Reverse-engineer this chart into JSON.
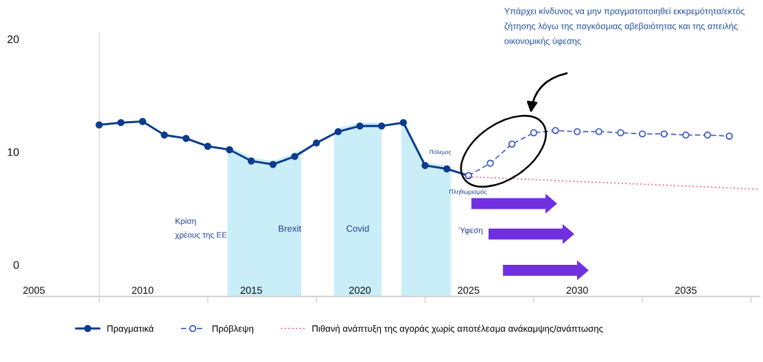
{
  "chart_data": {
    "type": "line",
    "series": [
      {
        "name": "Πραγματικά",
        "color": "#0d3b8e",
        "line_style": "solid",
        "x": [
          2008,
          2009,
          2010,
          2011,
          2012,
          2013,
          2014,
          2015,
          2016,
          2017,
          2018,
          2019,
          2020,
          2021,
          2022,
          2023,
          2024,
          2025
        ],
        "values": [
          12.4,
          12.6,
          12.7,
          11.5,
          11.2,
          10.5,
          10.2,
          9.2,
          8.9,
          9.6,
          10.8,
          11.8,
          12.3,
          12.3,
          12.6,
          8.8,
          8.5,
          7.9
        ]
      },
      {
        "name": "Πρόβλεψη",
        "color": "#3d5fc4",
        "line_style": "dashed",
        "x": [
          2025,
          2026,
          2027,
          2028,
          2029,
          2030,
          2031,
          2032,
          2033,
          2034,
          2035,
          2036,
          2037
        ],
        "values": [
          7.9,
          9.0,
          10.7,
          11.7,
          11.9,
          11.8,
          11.8,
          11.7,
          11.6,
          11.6,
          11.5,
          11.5,
          11.4
        ]
      },
      {
        "name": "Πιθανή ανάπτυξη της αγοράς χωρίς αποτέλεσμα ανάκαμψης/ανάπτωσης",
        "color": "#ec6f98",
        "line_style": "dotted",
        "marker": "none",
        "x": [
          2025,
          2038.4
        ],
        "values": [
          7.8,
          6.7
        ]
      }
    ],
    "marker": "circle",
    "xlim": [
      2004.7,
      2038.4
    ],
    "xticks": [
      2005,
      {
        "value": 2008,
        "label": null
      },
      2010,
      {
        "value": 2013,
        "label": null
      },
      2015,
      {
        "value": 2018,
        "label": null
      },
      2020,
      {
        "value": 2023,
        "label": null
      },
      2025,
      {
        "value": 2028,
        "label": null
      },
      2030,
      {
        "value": 2033,
        "label": null
      },
      2035,
      {
        "value": 2038,
        "label": null
      }
    ],
    "ylim": [
      -2.8,
      20.6
    ],
    "yticks": [
      0,
      10,
      20
    ],
    "bands": [
      {
        "axis": "x",
        "from": 2013.9,
        "to": 2017.3,
        "label": "Brexit",
        "color": "#c9eef8"
      },
      {
        "axis": "x",
        "from": 2018.8,
        "to": 2021.0,
        "label": "Covid",
        "color": "#c9eef8"
      },
      {
        "axis": "x",
        "from": 2021.9,
        "to": 2024.2,
        "label": "Πόλεμος",
        "color": "#c9eef8"
      }
    ],
    "annotations": [
      "Κρίση\nχρέους της ΕΕ",
      "Πληθωρισμός",
      "Ύφεση",
      "Υπάρχει κίνδυνος να μην πραγματοποιηθεί εκκρεμότητα/εκτός\nζήτησης λόγω της παγκόσμιας αβεβαιότητας και της απειλής\nοικονομικής ύφεσης"
    ],
    "legend": "bottom"
  }
}
